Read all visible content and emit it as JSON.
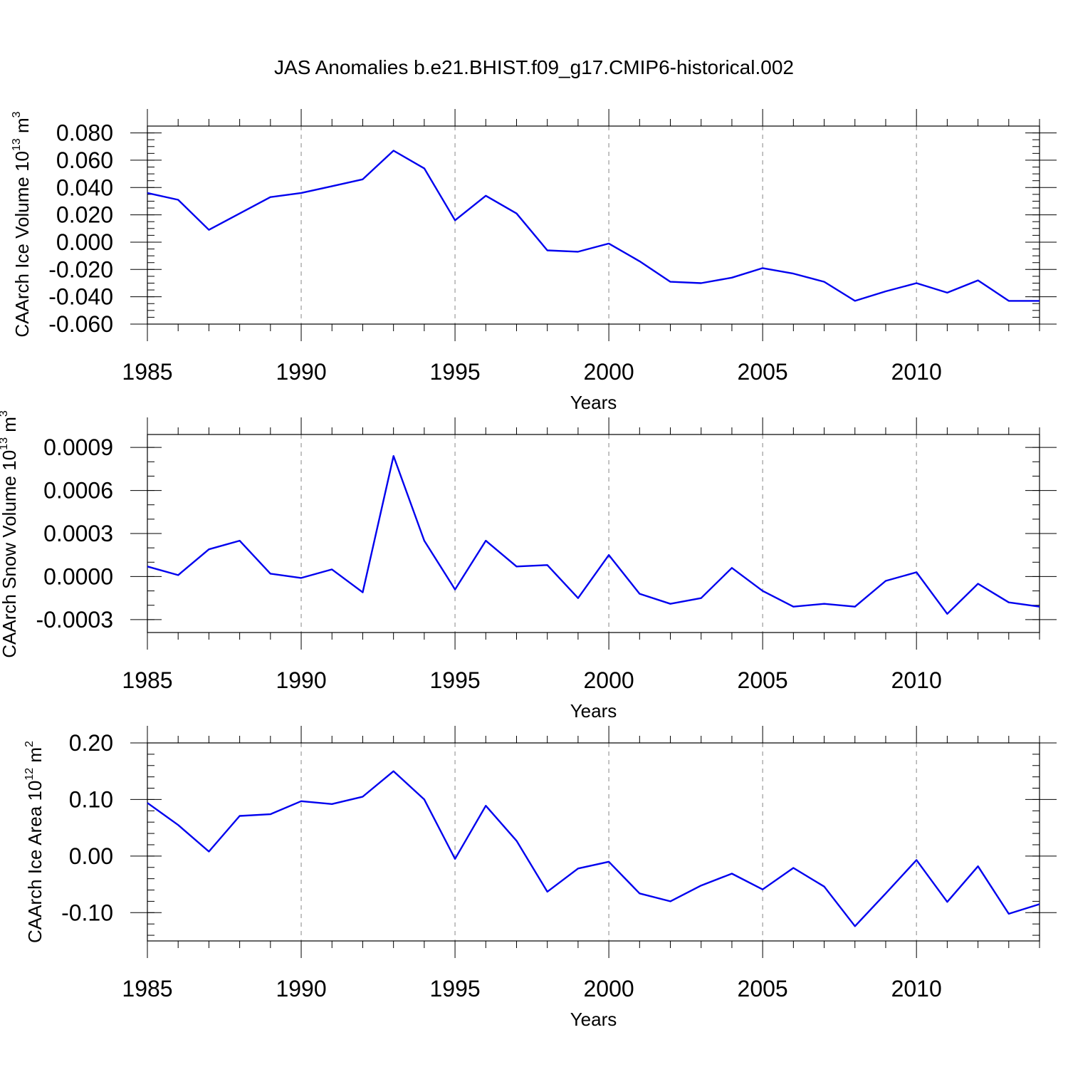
{
  "figure": {
    "title": "JAS Anomalies b.e21.BHIST.f09_g17.CMIP6-historical.002"
  },
  "chart_data": [
    {
      "type": "line",
      "ylabel_base": "CAArch Ice Volume 10",
      "ylabel_exp": "13",
      "ylabel_unit": " m",
      "ylabel_unit_exp": "3",
      "xlabel": "Years",
      "xlim": [
        1985,
        2014
      ],
      "ylim": [
        -0.06,
        0.085
      ],
      "x_ticks": [
        1985,
        1990,
        1995,
        2000,
        2005,
        2010
      ],
      "x_tick_labels": [
        "1985",
        "1990",
        "1995",
        "2000",
        "2005",
        "2010"
      ],
      "y_ticks": [
        0.08,
        0.06,
        0.04,
        0.02,
        0.0,
        -0.02,
        -0.04,
        -0.06
      ],
      "y_tick_labels": [
        "0.080",
        "0.060",
        "0.040",
        "0.020",
        "0.000",
        "-0.020",
        "-0.040",
        "-0.060"
      ],
      "y_minor_step": 0.005,
      "grid": "vertical dashed at labeled years",
      "line_color": "#0000ee",
      "x": [
        1985,
        1986,
        1987,
        1988,
        1989,
        1990,
        1991,
        1992,
        1993,
        1994,
        1995,
        1996,
        1997,
        1998,
        1999,
        2000,
        2001,
        2002,
        2003,
        2004,
        2005,
        2006,
        2007,
        2008,
        2009,
        2010,
        2011,
        2012,
        2013,
        2014
      ],
      "values": [
        0.036,
        0.031,
        0.009,
        0.021,
        0.033,
        0.036,
        0.041,
        0.046,
        0.067,
        0.054,
        0.016,
        0.034,
        0.021,
        -0.006,
        -0.007,
        -0.001,
        -0.014,
        -0.029,
        -0.03,
        -0.026,
        -0.019,
        -0.023,
        -0.029,
        -0.043,
        -0.036,
        -0.03,
        -0.037,
        -0.028,
        -0.043,
        -0.043
      ]
    },
    {
      "type": "line",
      "ylabel_base": "CAArch Snow Volume 10",
      "ylabel_exp": "13",
      "ylabel_unit": " m",
      "ylabel_unit_exp": "3",
      "xlabel": "Years",
      "xlim": [
        1985,
        2014
      ],
      "ylim": [
        -0.00039,
        0.00099
      ],
      "x_ticks": [
        1985,
        1990,
        1995,
        2000,
        2005,
        2010
      ],
      "x_tick_labels": [
        "1985",
        "1990",
        "1995",
        "2000",
        "2005",
        "2010"
      ],
      "y_ticks": [
        0.0009,
        0.0006,
        0.0003,
        0.0,
        -0.0003
      ],
      "y_tick_labels": [
        "0.0009",
        "0.0006",
        "0.0003",
        "0.0000",
        "-0.0003"
      ],
      "y_minor_step": 0.0001,
      "grid": "vertical dashed at labeled years",
      "line_color": "#0000ee",
      "x": [
        1985,
        1986,
        1987,
        1988,
        1989,
        1990,
        1991,
        1992,
        1993,
        1994,
        1995,
        1996,
        1997,
        1998,
        1999,
        2000,
        2001,
        2002,
        2003,
        2004,
        2005,
        2006,
        2007,
        2008,
        2009,
        2010,
        2011,
        2012,
        2013,
        2014
      ],
      "values": [
        7e-05,
        1e-05,
        0.00019,
        0.00025,
        2e-05,
        -1e-05,
        5e-05,
        -0.00011,
        0.00084,
        0.00025,
        -9e-05,
        0.00025,
        7e-05,
        8e-05,
        -0.00015,
        0.00015,
        -0.00012,
        -0.00019,
        -0.00015,
        6e-05,
        -0.0001,
        -0.00021,
        -0.00019,
        -0.00021,
        -3e-05,
        3e-05,
        -0.00026,
        -5e-05,
        -0.00018,
        -0.00021
      ]
    },
    {
      "type": "line",
      "ylabel_base": "CAArch Ice Area 10",
      "ylabel_exp": "12",
      "ylabel_unit": " m",
      "ylabel_unit_exp": "2",
      "xlabel": "Years",
      "xlim": [
        1985,
        2014
      ],
      "ylim": [
        -0.15,
        0.2
      ],
      "x_ticks": [
        1985,
        1990,
        1995,
        2000,
        2005,
        2010
      ],
      "x_tick_labels": [
        "1985",
        "1990",
        "1995",
        "2000",
        "2005",
        "2010"
      ],
      "y_ticks": [
        0.2,
        0.1,
        0.0,
        -0.1
      ],
      "y_tick_labels": [
        "0.20",
        "0.10",
        "0.00",
        "-0.10"
      ],
      "y_minor_step": 0.02,
      "grid": "vertical dashed at labeled years",
      "line_color": "#0000ee",
      "x": [
        1985,
        1986,
        1987,
        1988,
        1989,
        1990,
        1991,
        1992,
        1993,
        1994,
        1995,
        1996,
        1997,
        1998,
        1999,
        2000,
        2001,
        2002,
        2003,
        2004,
        2005,
        2006,
        2007,
        2008,
        2009,
        2010,
        2011,
        2012,
        2013,
        2014
      ],
      "values": [
        0.094,
        0.055,
        0.008,
        0.071,
        0.074,
        0.097,
        0.092,
        0.105,
        0.15,
        0.1,
        -0.005,
        0.089,
        0.027,
        -0.063,
        -0.022,
        -0.01,
        -0.066,
        -0.08,
        -0.052,
        -0.031,
        -0.059,
        -0.021,
        -0.054,
        -0.124,
        -0.066,
        -0.007,
        -0.081,
        -0.018,
        -0.102,
        -0.085
      ]
    }
  ]
}
